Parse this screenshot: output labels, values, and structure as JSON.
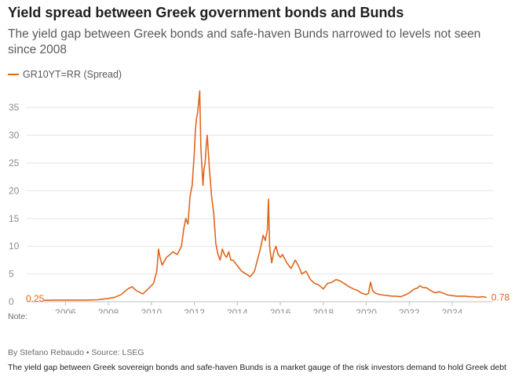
{
  "title": "Yield spread between Greek government bonds and Bunds",
  "subtitle": "The yield gap between Greek bonds and safe-haven Bunds narrowed to levels not seen since 2008",
  "legend": {
    "label": "GR10YT=RR (Spread)"
  },
  "colors": {
    "series": "#e0661d",
    "grid": "#e3e3e3",
    "axis": "#bfbfbf",
    "tick_text": "#8c8c8c"
  },
  "footer": {
    "note": "Note:",
    "byline": "By Stefano Rebaudo • Source: LSEG",
    "caption": "The yield gap between Greek sovereign bonds and safe-haven Bunds is a market gauge of the risk investors demand to hold Greek debt"
  },
  "chart_data": {
    "type": "line",
    "title": "Yield spread between Greek government bonds and Bunds",
    "xlabel": "",
    "ylabel": "",
    "xlim": [
      2005.0,
      2025.9
    ],
    "ylim": [
      0,
      38
    ],
    "x_ticks": [
      2006,
      2008,
      2010,
      2012,
      2014,
      2016,
      2018,
      2020,
      2022,
      2024
    ],
    "y_ticks": [
      0,
      5,
      10,
      15,
      20,
      25,
      30,
      35
    ],
    "grid": true,
    "legend_position": "top-left",
    "start_label": "0.25",
    "end_label": "0.78",
    "series": [
      {
        "name": "GR10YT=RR (Spread)",
        "x": [
          2005.0,
          2005.5,
          2006.0,
          2006.5,
          2007.0,
          2007.5,
          2008.0,
          2008.3,
          2008.6,
          2008.9,
          2009.1,
          2009.3,
          2009.6,
          2009.9,
          2010.1,
          2010.25,
          2010.33,
          2010.4,
          2010.5,
          2010.7,
          2010.9,
          2011.0,
          2011.2,
          2011.4,
          2011.5,
          2011.6,
          2011.7,
          2011.8,
          2011.9,
          2011.95,
          2012.0,
          2012.05,
          2012.1,
          2012.15,
          2012.2,
          2012.25,
          2012.3,
          2012.4,
          2012.45,
          2012.5,
          2012.55,
          2012.6,
          2012.7,
          2012.8,
          2012.9,
          2013.0,
          2013.1,
          2013.2,
          2013.3,
          2013.4,
          2013.5,
          2013.6,
          2013.7,
          2013.8,
          2013.9,
          2014.0,
          2014.2,
          2014.4,
          2014.6,
          2014.8,
          2014.9,
          2015.0,
          2015.1,
          2015.2,
          2015.3,
          2015.4,
          2015.45,
          2015.5,
          2015.55,
          2015.6,
          2015.7,
          2015.8,
          2015.9,
          2016.0,
          2016.1,
          2016.3,
          2016.5,
          2016.7,
          2016.9,
          2017.0,
          2017.2,
          2017.4,
          2017.6,
          2017.8,
          2018.0,
          2018.2,
          2018.4,
          2018.6,
          2018.8,
          2019.0,
          2019.2,
          2019.4,
          2019.6,
          2019.8,
          2020.0,
          2020.1,
          2020.2,
          2020.3,
          2020.4,
          2020.6,
          2020.8,
          2021.0,
          2021.2,
          2021.4,
          2021.6,
          2021.8,
          2022.0,
          2022.2,
          2022.4,
          2022.5,
          2022.6,
          2022.8,
          2023.0,
          2023.2,
          2023.4,
          2023.6,
          2023.8,
          2024.0,
          2024.2,
          2024.4,
          2024.6,
          2024.8,
          2025.0,
          2025.2,
          2025.4,
          2025.6
        ],
        "y": [
          0.25,
          0.3,
          0.3,
          0.3,
          0.3,
          0.35,
          0.6,
          0.8,
          1.3,
          2.3,
          2.7,
          2.0,
          1.4,
          2.5,
          3.3,
          5.5,
          9.5,
          8.0,
          6.6,
          8.0,
          8.6,
          9.0,
          8.5,
          10.0,
          13.0,
          15.0,
          14.0,
          19.0,
          21.0,
          24.0,
          27.0,
          31.0,
          33.0,
          34.0,
          36.0,
          38.0,
          28.0,
          21.0,
          24.0,
          25.0,
          28.0,
          30.0,
          24.0,
          19.0,
          16.0,
          10.5,
          8.5,
          7.5,
          9.5,
          8.5,
          8.0,
          9.0,
          7.5,
          7.5,
          7.0,
          6.5,
          5.5,
          5.0,
          4.5,
          5.5,
          7.0,
          8.5,
          10.0,
          12.0,
          11.0,
          13.0,
          18.5,
          10.0,
          8.5,
          7.0,
          9.0,
          10.0,
          8.5,
          8.0,
          8.5,
          7.0,
          6.0,
          7.5,
          6.0,
          5.0,
          5.5,
          4.0,
          3.3,
          3.0,
          2.3,
          3.3,
          3.5,
          4.0,
          3.7,
          3.2,
          2.7,
          2.3,
          2.0,
          1.5,
          1.3,
          1.5,
          3.5,
          2.0,
          1.6,
          1.3,
          1.2,
          1.1,
          1.0,
          1.0,
          0.9,
          1.2,
          1.6,
          2.2,
          2.5,
          2.9,
          2.6,
          2.5,
          2.0,
          1.6,
          1.8,
          1.5,
          1.2,
          1.1,
          1.0,
          1.0,
          1.0,
          0.9,
          0.9,
          0.8,
          0.9,
          0.78
        ]
      }
    ]
  }
}
